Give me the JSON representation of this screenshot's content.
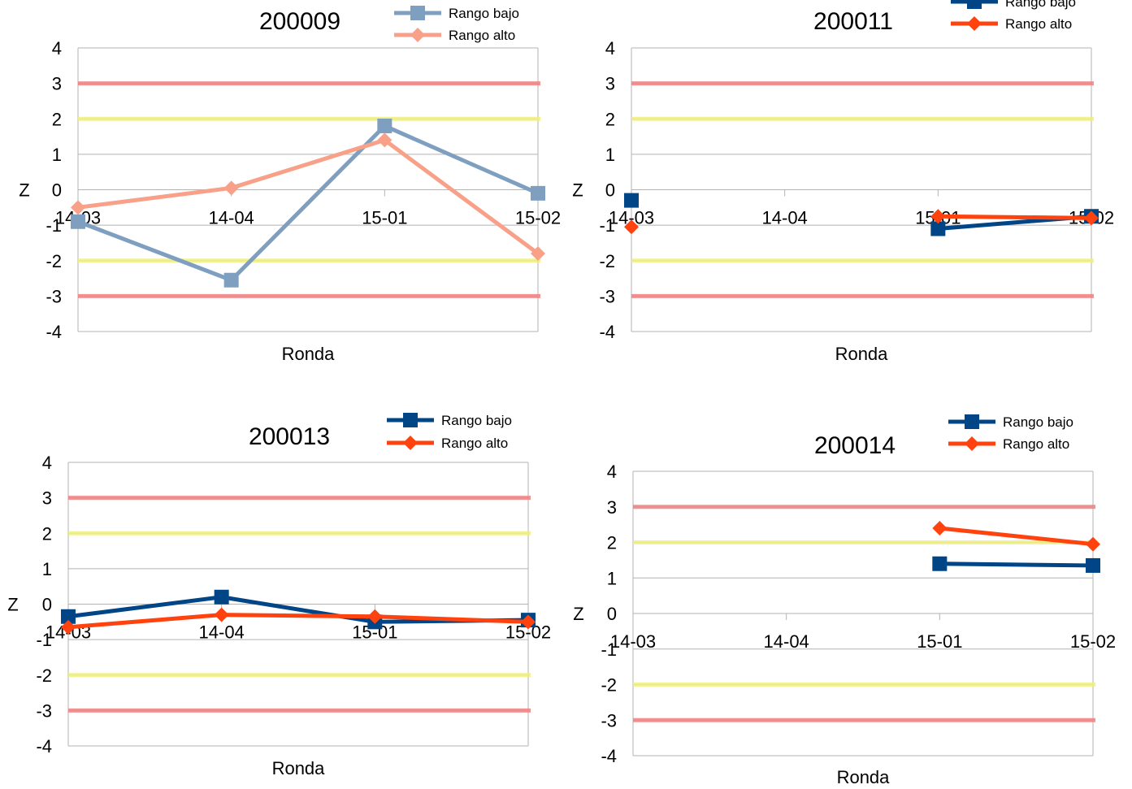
{
  "chart_data": [
    {
      "type": "line",
      "title": "200009",
      "xlabel": "Ronda",
      "ylabel": "Z",
      "categories": [
        "14-03",
        "14-04",
        "15-01",
        "15-02"
      ],
      "ylim": [
        -4,
        4
      ],
      "yticks": [
        "-4",
        "-3",
        "-2",
        "-1",
        "0",
        "1",
        "2",
        "3",
        "4"
      ],
      "grid": "horizontal",
      "legend_position": "top-right",
      "reference_lines": [
        {
          "y": 3,
          "color": "#f08080"
        },
        {
          "y": -3,
          "color": "#f08080"
        },
        {
          "y": 2,
          "color": "#f0f080"
        },
        {
          "y": -2,
          "color": "#f0f080"
        }
      ],
      "series": [
        {
          "name": "Rango bajo",
          "color": "#7f9fc0",
          "marker": "square",
          "values": [
            -0.9,
            -2.55,
            1.8,
            -0.1
          ]
        },
        {
          "name": "Rango alto",
          "color": "#f8a088",
          "marker": "diamond",
          "values": [
            -0.5,
            0.05,
            1.4,
            -1.8
          ]
        }
      ]
    },
    {
      "type": "line",
      "title": "200011",
      "xlabel": "Ronda",
      "ylabel": "Z",
      "categories": [
        "14-03",
        "14-04",
        "15-01",
        "15-02"
      ],
      "ylim": [
        -4,
        4
      ],
      "yticks": [
        "-4",
        "-3",
        "-2",
        "-1",
        "0",
        "1",
        "2",
        "3",
        "4"
      ],
      "grid": "horizontal",
      "legend_position": "top-right",
      "reference_lines": [
        {
          "y": 3,
          "color": "#f08080"
        },
        {
          "y": -3,
          "color": "#f08080"
        },
        {
          "y": 2,
          "color": "#f0f080"
        },
        {
          "y": -2,
          "color": "#f0f080"
        }
      ],
      "series": [
        {
          "name": "Rango bajo",
          "color": "#004586",
          "marker": "square",
          "values": [
            -0.3,
            null,
            -1.1,
            -0.75
          ]
        },
        {
          "name": "Rango alto",
          "color": "#ff420e",
          "marker": "diamond",
          "values": [
            -1.05,
            null,
            -0.75,
            -0.8
          ]
        }
      ]
    },
    {
      "type": "line",
      "title": "200013",
      "xlabel": "Ronda",
      "ylabel": "Z",
      "categories": [
        "14-03",
        "14-04",
        "15-01",
        "15-02"
      ],
      "ylim": [
        -4,
        4
      ],
      "yticks": [
        "-4",
        "-3",
        "-2",
        "-1",
        "0",
        "1",
        "2",
        "3",
        "4"
      ],
      "grid": "horizontal",
      "legend_position": "top-right",
      "reference_lines": [
        {
          "y": 3,
          "color": "#f08080"
        },
        {
          "y": -3,
          "color": "#f08080"
        },
        {
          "y": 2,
          "color": "#f0f080"
        },
        {
          "y": -2,
          "color": "#f0f080"
        }
      ],
      "series": [
        {
          "name": "Rango bajo",
          "color": "#004586",
          "marker": "square",
          "values": [
            -0.35,
            0.2,
            -0.5,
            -0.45
          ]
        },
        {
          "name": "Rango alto",
          "color": "#ff420e",
          "marker": "diamond",
          "values": [
            -0.65,
            -0.3,
            -0.35,
            -0.5
          ]
        }
      ]
    },
    {
      "type": "line",
      "title": "200014",
      "xlabel": "Ronda",
      "ylabel": "Z",
      "categories": [
        "14-03",
        "14-04",
        "15-01",
        "15-02"
      ],
      "ylim": [
        -4,
        4
      ],
      "yticks": [
        "-4",
        "-3",
        "-2",
        "-1",
        "0",
        "1",
        "2",
        "3",
        "4"
      ],
      "grid": "horizontal",
      "legend_position": "top-right",
      "reference_lines": [
        {
          "y": 3,
          "color": "#f08080"
        },
        {
          "y": -3,
          "color": "#f08080"
        },
        {
          "y": 2,
          "color": "#f0f080"
        },
        {
          "y": -2,
          "color": "#f0f080"
        }
      ],
      "series": [
        {
          "name": "Rango bajo",
          "color": "#004586",
          "marker": "square",
          "values": [
            null,
            null,
            1.4,
            1.35
          ]
        },
        {
          "name": "Rango alto",
          "color": "#ff420e",
          "marker": "diamond",
          "values": [
            null,
            null,
            2.4,
            1.95
          ]
        }
      ]
    }
  ]
}
